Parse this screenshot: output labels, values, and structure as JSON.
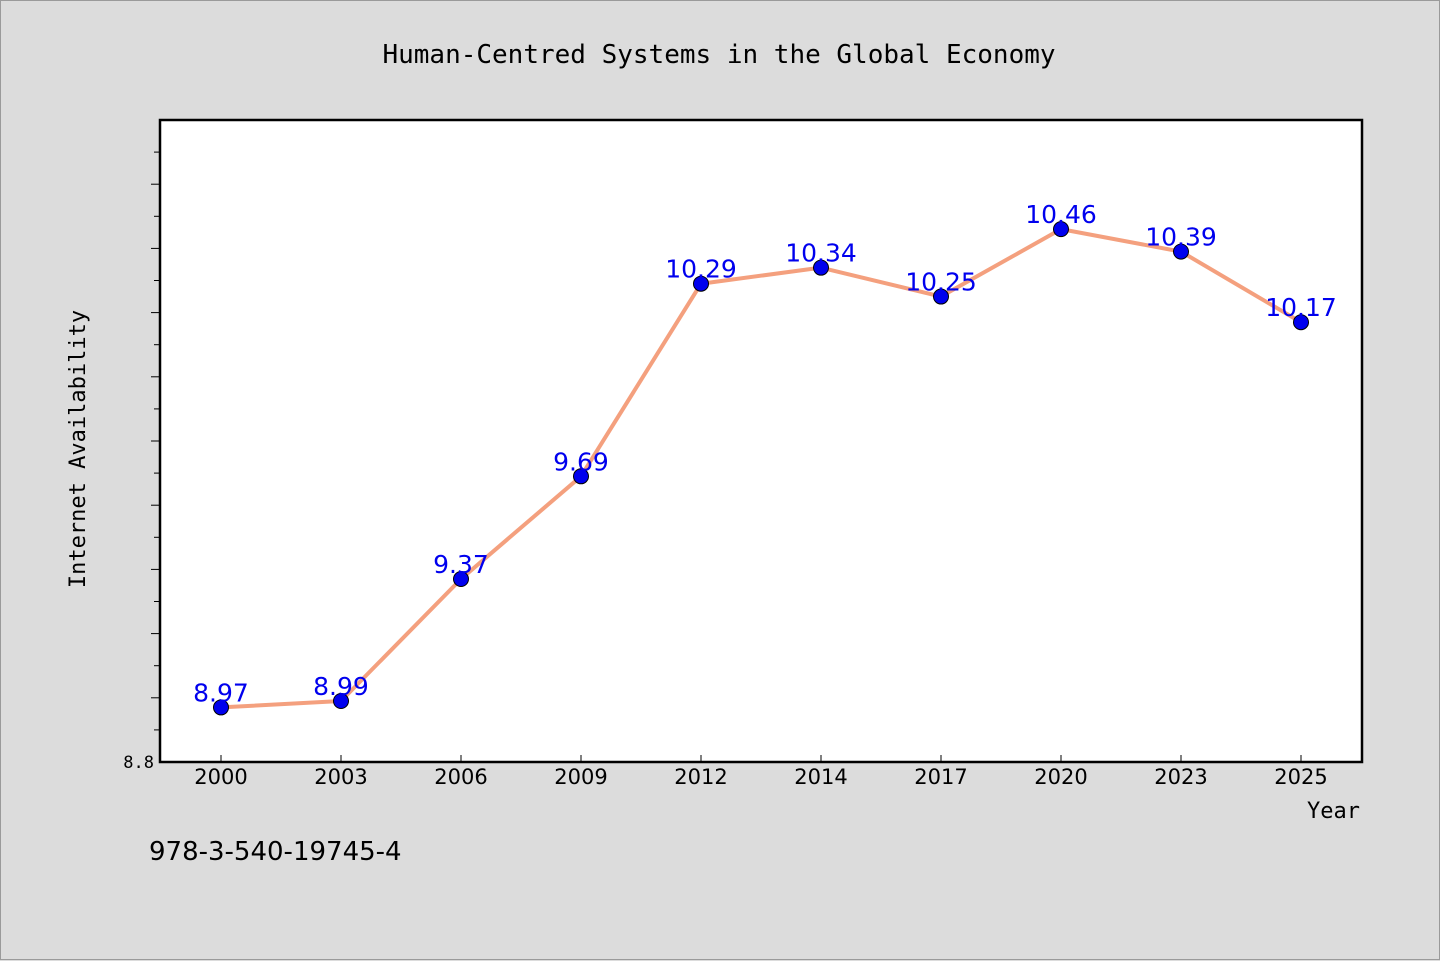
{
  "chart_data": {
    "type": "line",
    "title": "Human-Centred Systems in the Global Economy",
    "xlabel": "Year",
    "ylabel": "Internet Availability",
    "categories": [
      "2000",
      "2003",
      "2006",
      "2009",
      "2012",
      "2014",
      "2017",
      "2020",
      "2023",
      "2025"
    ],
    "series": [
      {
        "values": [
          8.97,
          8.99,
          9.37,
          9.69,
          10.29,
          10.34,
          10.25,
          10.46,
          10.39,
          10.17
        ]
      }
    ],
    "ylim": [
      8.8,
      10.8
    ],
    "y_tick_labels": [
      "8.8"
    ],
    "grid": false,
    "data_labels": true,
    "colors": {
      "line": "#f4a07e",
      "marker": "#0000ee",
      "label": "#0000ee",
      "background": "#dcdcdc",
      "plot_bg": "#ffffff"
    }
  },
  "footer": {
    "isbn": "978-3-540-19745-4"
  }
}
